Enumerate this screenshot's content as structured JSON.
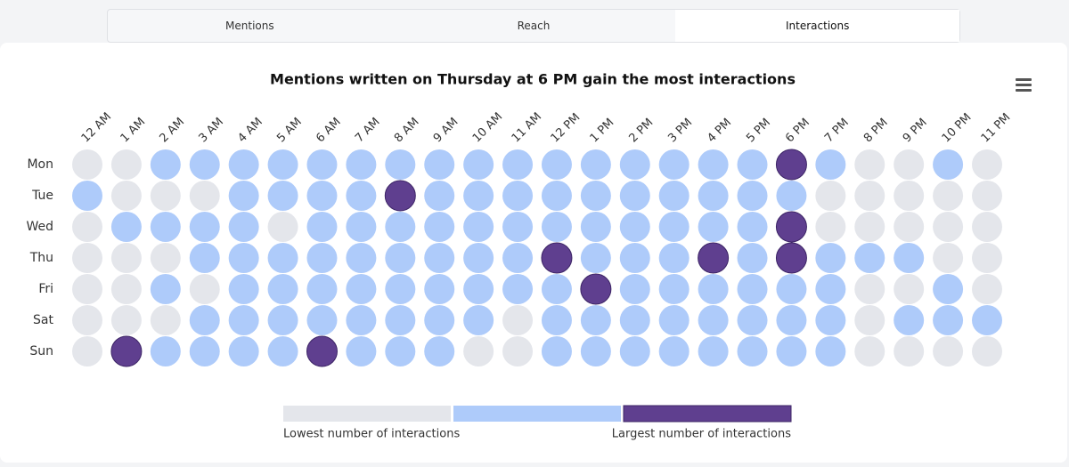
{
  "tabs": [
    "Mentions",
    "Reach",
    "Interactions"
  ],
  "active_tab": 2,
  "chart_data": {
    "type": "heatmap",
    "title": "Mentions written on Thursday at 6 PM gain the most interactions",
    "x_categories": [
      "12 AM",
      "1 AM",
      "2 AM",
      "3 AM",
      "4 AM",
      "5 AM",
      "6 AM",
      "7 AM",
      "8 AM",
      "9 AM",
      "10 AM",
      "11 AM",
      "12 PM",
      "1 PM",
      "2 PM",
      "3 PM",
      "4 PM",
      "5 PM",
      "6 PM",
      "7 PM",
      "8 PM",
      "9 PM",
      "10 PM",
      "11 PM"
    ],
    "y_categories": [
      "Mon",
      "Tue",
      "Wed",
      "Thu",
      "Fri",
      "Sat",
      "Sun"
    ],
    "values": [
      [
        0,
        0,
        1,
        1,
        1,
        1,
        1,
        1,
        1,
        1,
        1,
        1,
        1,
        1,
        1,
        1,
        1,
        1,
        2,
        1,
        0,
        0,
        1,
        0
      ],
      [
        1,
        0,
        0,
        0,
        1,
        1,
        1,
        1,
        2,
        1,
        1,
        1,
        1,
        1,
        1,
        1,
        1,
        1,
        1,
        0,
        0,
        0,
        0,
        0
      ],
      [
        0,
        1,
        1,
        1,
        1,
        0,
        1,
        1,
        1,
        1,
        1,
        1,
        1,
        1,
        1,
        1,
        1,
        1,
        2,
        0,
        0,
        0,
        0,
        0
      ],
      [
        0,
        0,
        0,
        1,
        1,
        1,
        1,
        1,
        1,
        1,
        1,
        1,
        2,
        1,
        1,
        1,
        2,
        1,
        2,
        1,
        1,
        1,
        0,
        0
      ],
      [
        0,
        0,
        1,
        0,
        1,
        1,
        1,
        1,
        1,
        1,
        1,
        1,
        1,
        2,
        1,
        1,
        1,
        1,
        1,
        1,
        0,
        0,
        1,
        0
      ],
      [
        0,
        0,
        0,
        1,
        1,
        1,
        1,
        1,
        1,
        1,
        1,
        0,
        1,
        1,
        1,
        1,
        1,
        1,
        1,
        1,
        0,
        1,
        1,
        1
      ],
      [
        0,
        2,
        1,
        1,
        1,
        1,
        2,
        1,
        1,
        1,
        0,
        0,
        1,
        1,
        1,
        1,
        1,
        1,
        1,
        1,
        0,
        0,
        0,
        0
      ]
    ],
    "colors": [
      "#e4e6eb",
      "#aecbfa",
      "#5f3f8f"
    ],
    "legend": {
      "min_label": "Lowest number of interactions",
      "max_label": "Largest number of interactions"
    }
  }
}
